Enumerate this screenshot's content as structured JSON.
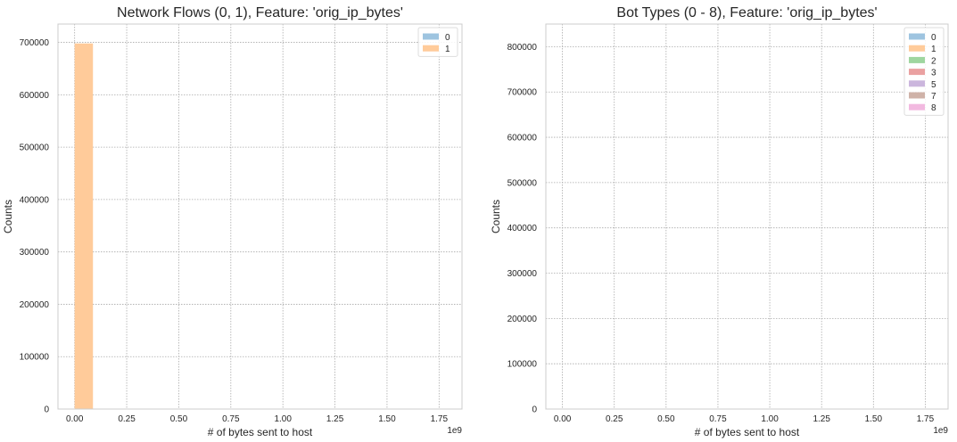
{
  "chart_data": [
    {
      "type": "bar",
      "title": "Network Flows (0, 1), Feature: 'orig_ip_bytes'",
      "xlabel": "# of bytes sent to host",
      "ylabel": "Counts",
      "x_offset_label": "1e9",
      "xlim": [
        -0.08,
        1.86
      ],
      "ylim": [
        0,
        735000
      ],
      "xticks": [
        0.0,
        0.25,
        0.5,
        0.75,
        1.0,
        1.25,
        1.5,
        1.75
      ],
      "xtick_labels": [
        "0.00",
        "0.25",
        "0.50",
        "0.75",
        "1.00",
        "1.25",
        "1.50",
        "1.75"
      ],
      "yticks": [
        0,
        100000,
        200000,
        300000,
        400000,
        500000,
        600000,
        700000
      ],
      "ytick_labels": [
        "0",
        "100000",
        "200000",
        "300000",
        "400000",
        "500000",
        "600000",
        "700000"
      ],
      "grid": true,
      "legend_position": "top-right",
      "series": [
        {
          "name": "0",
          "color": "#9ec4e0",
          "bins": [
            {
              "x0": 0.0,
              "x1": 0.088,
              "count": 0
            }
          ]
        },
        {
          "name": "1",
          "color": "#ffcb9a",
          "bins": [
            {
              "x0": 0.0,
              "x1": 0.088,
              "count": 698000
            }
          ]
        }
      ]
    },
    {
      "type": "bar",
      "title": "Bot Types (0 - 8), Feature: 'orig_ip_bytes'",
      "xlabel": "# of bytes sent to host",
      "ylabel": "Counts",
      "x_offset_label": "1e9",
      "xlim": [
        -0.08,
        1.86
      ],
      "ylim": [
        0,
        850000
      ],
      "xticks": [
        0.0,
        0.25,
        0.5,
        0.75,
        1.0,
        1.25,
        1.5,
        1.75
      ],
      "xtick_labels": [
        "0.00",
        "0.25",
        "0.50",
        "0.75",
        "1.00",
        "1.25",
        "1.50",
        "1.75"
      ],
      "yticks": [
        0,
        100000,
        200000,
        300000,
        400000,
        500000,
        600000,
        700000,
        800000
      ],
      "ytick_labels": [
        "0",
        "100000",
        "200000",
        "300000",
        "400000",
        "500000",
        "600000",
        "700000",
        "800000"
      ],
      "grid": true,
      "legend_position": "top-right",
      "series": [
        {
          "name": "0",
          "color": "#9ec4e0",
          "bins": []
        },
        {
          "name": "1",
          "color": "#ffcb9a",
          "bins": []
        },
        {
          "name": "2",
          "color": "#9fd69f",
          "bins": []
        },
        {
          "name": "3",
          "color": "#eaa1a1",
          "bins": []
        },
        {
          "name": "5",
          "color": "#cbb6dd",
          "bins": []
        },
        {
          "name": "7",
          "color": "#cfb2a8",
          "bins": []
        },
        {
          "name": "8",
          "color": "#f2b9e0",
          "bins": []
        }
      ]
    }
  ]
}
